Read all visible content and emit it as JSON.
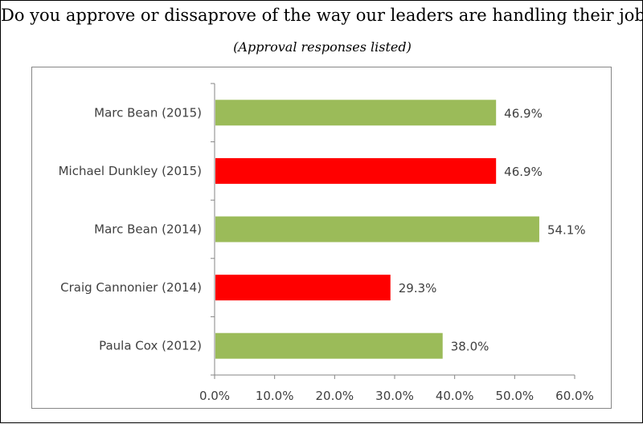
{
  "chart_data": {
    "type": "bar",
    "orientation": "horizontal",
    "title": "Do you approve or dissaprove of the way our leaders are handling their job?",
    "subtitle": "(Approval responses listed)",
    "categories": [
      "Marc Bean (2015)",
      "Michael Dunkley (2015)",
      "Marc Bean (2014)",
      "Craig Cannonier (2014)",
      "Paula Cox (2012)"
    ],
    "values": [
      46.9,
      46.9,
      54.1,
      29.3,
      38.0
    ],
    "data_labels": [
      "46.9%",
      "46.9%",
      "54.1%",
      "29.3%",
      "38.0%"
    ],
    "bar_colors": [
      "#9bbb59",
      "#ff0000",
      "#9bbb59",
      "#ff0000",
      "#9bbb59"
    ],
    "xlim": [
      0,
      60
    ],
    "x_ticks": [
      0,
      10,
      20,
      30,
      40,
      50,
      60
    ],
    "x_tick_labels": [
      "0.0%",
      "10.0%",
      "20.0%",
      "30.0%",
      "40.0%",
      "50.0%",
      "60.0%"
    ],
    "xlabel": "",
    "ylabel": "",
    "grid": false,
    "legend": "none"
  }
}
